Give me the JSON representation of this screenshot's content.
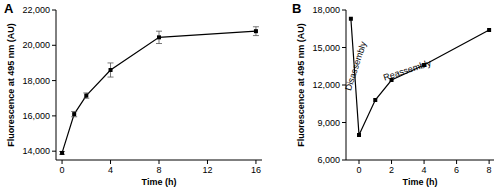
{
  "chart_data": [
    {
      "type": "line",
      "title": "A",
      "x_label": "Time (h)",
      "y_label": "Fluorescence at 495 nm (AU)",
      "x": [
        0,
        1,
        2,
        4,
        8,
        16
      ],
      "values": [
        13900,
        16100,
        17150,
        18600,
        20450,
        20800
      ],
      "errors": [
        80,
        150,
        150,
        400,
        350,
        250
      ],
      "color": "#000000",
      "marker": "square",
      "xlim": [
        -0.5,
        16.5
      ],
      "xticks": [
        0,
        4,
        8,
        12,
        16
      ],
      "ylim": [
        13500,
        22000
      ],
      "yticks": [
        {
          "value": 14000,
          "label": "14,000"
        },
        {
          "value": 16000,
          "label": "16,000"
        },
        {
          "value": 18000,
          "label": "18,000"
        },
        {
          "value": 20000,
          "label": "20,000"
        },
        {
          "value": 22000,
          "label": "22,000"
        }
      ],
      "grid": false
    },
    {
      "type": "line",
      "title": "B",
      "x_label": "Time (h)",
      "y_label": "Fluorescence at 495 nm (AU)",
      "x": [
        -0.5,
        0,
        1,
        2,
        4,
        8
      ],
      "values": [
        17300,
        8000,
        10800,
        12400,
        13600,
        16400
      ],
      "color": "#000000",
      "marker": "square",
      "annotations": [
        "Disassembly",
        "Reassembly"
      ],
      "xlim": [
        -0.8,
        8.3
      ],
      "xticks": [
        0,
        2,
        4,
        6,
        8
      ],
      "ylim": [
        6000,
        18000
      ],
      "yticks": [
        {
          "value": 6000,
          "label": "6,000"
        },
        {
          "value": 9000,
          "label": "9,000"
        },
        {
          "value": 12000,
          "label": "12,000"
        },
        {
          "value": 15000,
          "label": "15,000"
        },
        {
          "value": 18000,
          "label": "18,000"
        }
      ],
      "grid": false
    }
  ]
}
